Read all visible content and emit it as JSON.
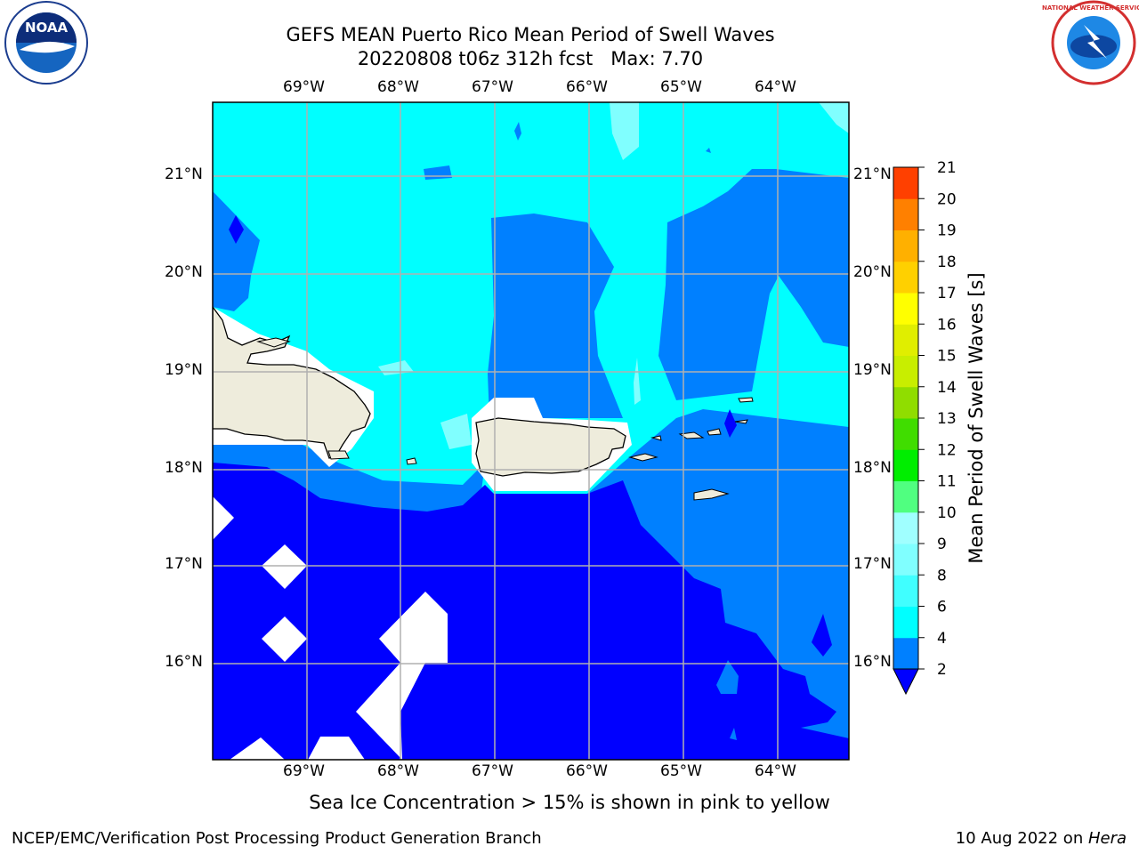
{
  "header": {
    "title_line1": "GEFS MEAN Puerto Rico Mean Period of Swell Waves",
    "title_line2": "20220808 t06z 312h fcst   Max: 7.70"
  },
  "logos": {
    "left": "NOAA",
    "right": "NATIONAL WEATHER SERVICE"
  },
  "map": {
    "lon_labels": [
      "69°W",
      "68°W",
      "67°W",
      "66°W",
      "65°W",
      "64°W"
    ],
    "lat_labels": [
      "21°N",
      "20°N",
      "19°N",
      "18°N",
      "17°N",
      "16°N"
    ],
    "colors": {
      "ocean_lt": "#00ffff",
      "ocean_mid": "#0080ff",
      "ocean_deep": "#0000ff",
      "pale": "#80ffff",
      "land": "#eeecdc",
      "grid": "#b0b0b0"
    }
  },
  "colorbar": {
    "label": "Mean Period of Swell Waves [s]",
    "ticks": [
      "2",
      "4",
      "6",
      "8",
      "9",
      "10",
      "11",
      "12",
      "13",
      "14",
      "15",
      "16",
      "17",
      "18",
      "19",
      "20",
      "21"
    ],
    "colors": [
      "#0080ff",
      "#00ffff",
      "#40ffff",
      "#80ffff",
      "#a0ffff",
      "#50ff80",
      "#00ee00",
      "#40dd00",
      "#90dd00",
      "#c8ee00",
      "#e0ee00",
      "#ffff00",
      "#ffd000",
      "#ffb000",
      "#ff8000",
      "#ff4000",
      "#ff2000",
      "#ff0000"
    ]
  },
  "footer": {
    "note": "Sea Ice Concentration > 15% is shown in pink to yellow",
    "credit": "NCEP/EMC/Verification Post Processing Product Generation Branch",
    "date": "10 Aug 2022 on ",
    "host": "Hera"
  }
}
